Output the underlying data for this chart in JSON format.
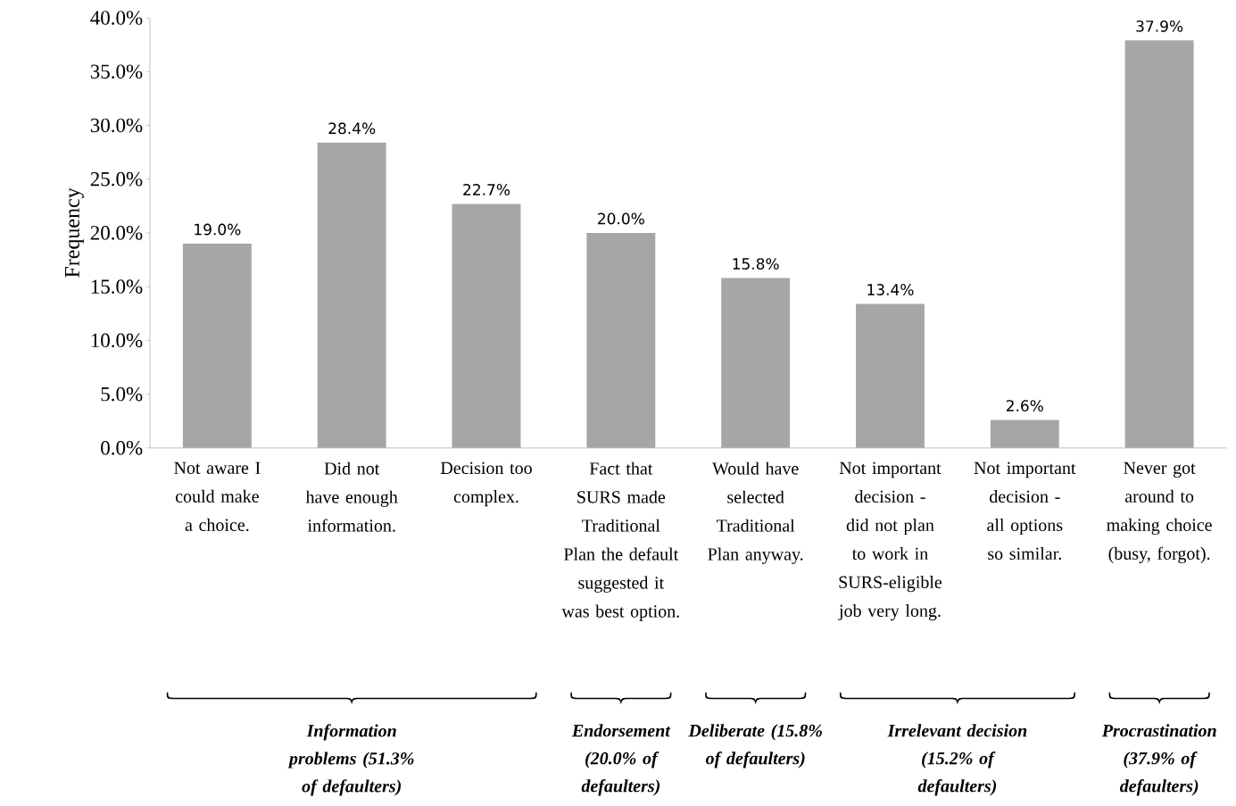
{
  "chart_data": {
    "type": "bar",
    "ylabel": "Frequency",
    "categories": [
      "Not aware I could make a choice.",
      "Did not have enough information.",
      "Decision too complex.",
      "Fact that SURS made Traditional Plan the default suggested it was best option.",
      "Would have selected Traditional Plan anyway.",
      "Not important decision - did not plan to work in SURS-eligible job very long.",
      "Not important decision - all options so similar.",
      "Never got around to making choice (busy, forgot)."
    ],
    "values": [
      19.0,
      28.4,
      22.7,
      20.0,
      15.8,
      13.4,
      2.6,
      37.9
    ],
    "value_labels": [
      "19.0%",
      "28.4%",
      "22.7%",
      "20.0%",
      "15.8%",
      "13.4%",
      "2.6%",
      "37.9%"
    ],
    "color": "#a6a6a6",
    "ylim": [
      0,
      40
    ],
    "yticks": [
      {
        "value": 0,
        "label": "0.0%"
      },
      {
        "value": 5,
        "label": "5.0%"
      },
      {
        "value": 10,
        "label": "10.0%"
      },
      {
        "value": 15,
        "label": "15.0%"
      },
      {
        "value": 20,
        "label": "20.0%"
      },
      {
        "value": 25,
        "label": "25.0%"
      },
      {
        "value": 30,
        "label": "30.0%"
      },
      {
        "value": 35,
        "label": "35.0%"
      },
      {
        "value": 40,
        "label": "40.0%"
      }
    ],
    "annotations": [
      "Information problems (51.3% of defaulters)",
      "Endorsement (20.0% of defaulters)",
      "Deliberate (15.8% of defaulters)",
      "Irrelevant decision (15.2% of defaulters)",
      "Procrastination (37.9% of defaulters)"
    ]
  }
}
